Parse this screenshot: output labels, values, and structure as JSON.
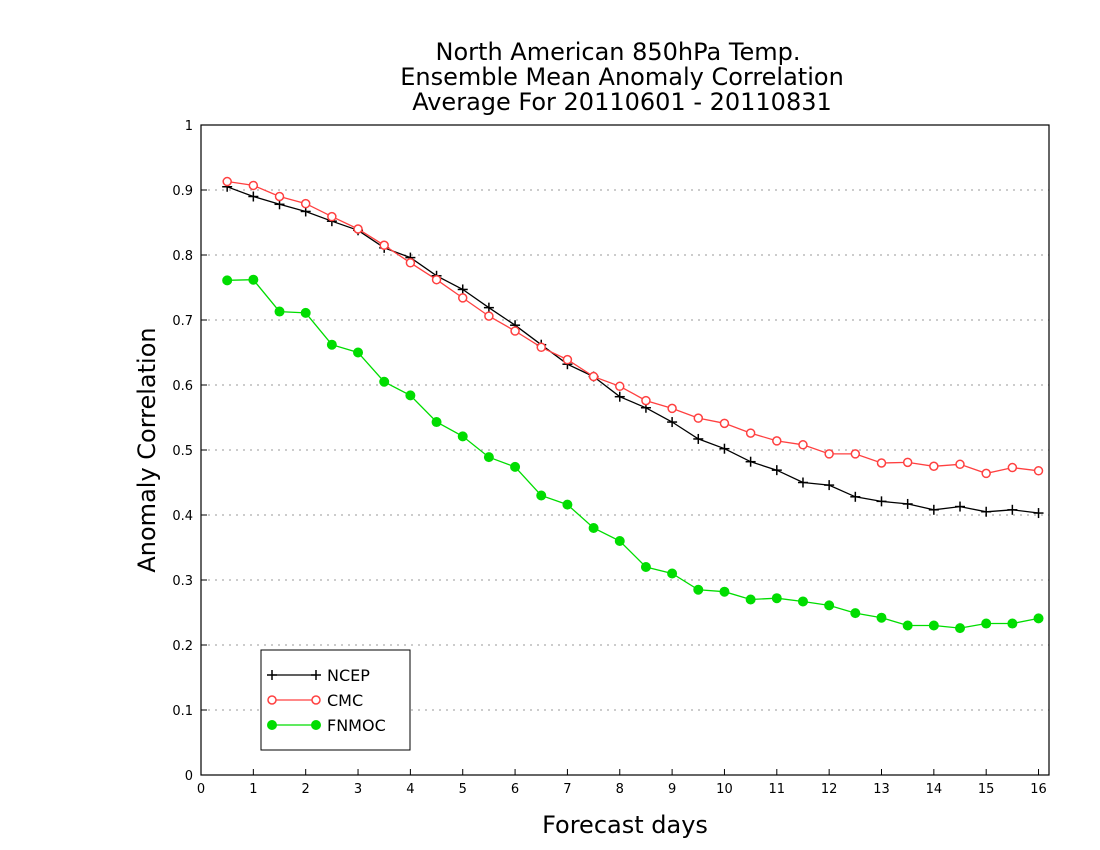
{
  "chart_data": {
    "type": "line",
    "title_lines": [
      "North American 850hPa Temp.",
      "Ensemble Mean Anomaly Correlation",
      "Average For 20110601 - 20110831"
    ],
    "xlabel": "Forecast days",
    "ylabel": "Anomaly Correlation",
    "xlim": [
      0,
      16.2
    ],
    "ylim": [
      0,
      1
    ],
    "xticks": [
      0,
      1,
      2,
      3,
      4,
      5,
      6,
      7,
      8,
      9,
      10,
      11,
      12,
      13,
      14,
      15,
      16
    ],
    "xtick_labels": [
      "0",
      "1",
      "2",
      "3",
      "4",
      "5",
      "6",
      "7",
      "8",
      "9",
      "10",
      "11",
      "12",
      "13",
      "14",
      "15",
      "16"
    ],
    "yticks": [
      0,
      0.1,
      0.2,
      0.3,
      0.4,
      0.5,
      0.6,
      0.7,
      0.8,
      0.9,
      1
    ],
    "ytick_labels": [
      "0",
      "0.1",
      "0.2",
      "0.3",
      "0.4",
      "0.5",
      "0.6",
      "0.7",
      "0.8",
      "0.9",
      "1"
    ],
    "grid": "horizontal dotted",
    "legend_position": "bottom-left",
    "x": [
      0.5,
      1,
      1.5,
      2,
      2.5,
      3,
      3.5,
      4,
      4.5,
      5,
      5.5,
      6,
      6.5,
      7,
      7.5,
      8,
      8.5,
      9,
      9.5,
      10,
      10.5,
      11,
      11.5,
      12,
      12.5,
      13,
      13.5,
      14,
      14.5,
      15,
      15.5,
      16
    ],
    "series": [
      {
        "name": "NCEP",
        "color": "#000000",
        "marker": "plus",
        "values": [
          0.905,
          0.89,
          0.878,
          0.867,
          0.852,
          0.838,
          0.811,
          0.796,
          0.768,
          0.747,
          0.719,
          0.692,
          0.662,
          0.632,
          0.613,
          0.582,
          0.565,
          0.543,
          0.517,
          0.502,
          0.482,
          0.469,
          0.45,
          0.446,
          0.428,
          0.421,
          0.417,
          0.408,
          0.413,
          0.405,
          0.408,
          0.403
        ]
      },
      {
        "name": "CMC",
        "color": "#ff4040",
        "marker": "open-circle",
        "values": [
          0.913,
          0.907,
          0.89,
          0.879,
          0.859,
          0.84,
          0.815,
          0.788,
          0.762,
          0.734,
          0.706,
          0.683,
          0.658,
          0.639,
          0.613,
          0.598,
          0.576,
          0.564,
          0.549,
          0.541,
          0.526,
          0.514,
          0.508,
          0.494,
          0.494,
          0.48,
          0.481,
          0.475,
          0.478,
          0.464,
          0.473,
          0.468
        ]
      },
      {
        "name": "FNMOC",
        "color": "#00dd00",
        "marker": "filled-circle",
        "values": [
          0.761,
          0.762,
          0.713,
          0.711,
          0.662,
          0.65,
          0.605,
          0.584,
          0.543,
          0.521,
          0.489,
          0.474,
          0.43,
          0.416,
          0.38,
          0.36,
          0.32,
          0.31,
          0.285,
          0.282,
          0.27,
          0.272,
          0.267,
          0.261,
          0.249,
          0.242,
          0.23,
          0.23,
          0.226,
          0.233,
          0.233,
          0.241
        ]
      }
    ]
  }
}
